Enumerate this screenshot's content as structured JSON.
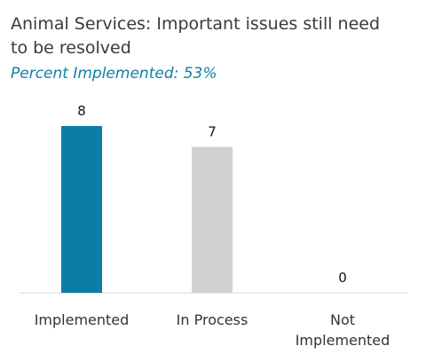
{
  "chart_data": {
    "type": "bar",
    "title": "Animal Services: Important issues still need to be resolved",
    "subtitle": "Percent Implemented: 53%",
    "categories": [
      "Implemented",
      "In Process",
      "Not Implemented"
    ],
    "category_lines": [
      [
        "Implemented"
      ],
      [
        "In Process"
      ],
      [
        "Not",
        "Implemented"
      ]
    ],
    "values": [
      8,
      7,
      0
    ],
    "colors": [
      "#0a7ea4",
      "#cfd0cf",
      "#cfd0cf"
    ],
    "xlabel": "",
    "ylabel": "",
    "ylim": [
      0,
      8
    ],
    "grid": false,
    "legend": "none"
  }
}
